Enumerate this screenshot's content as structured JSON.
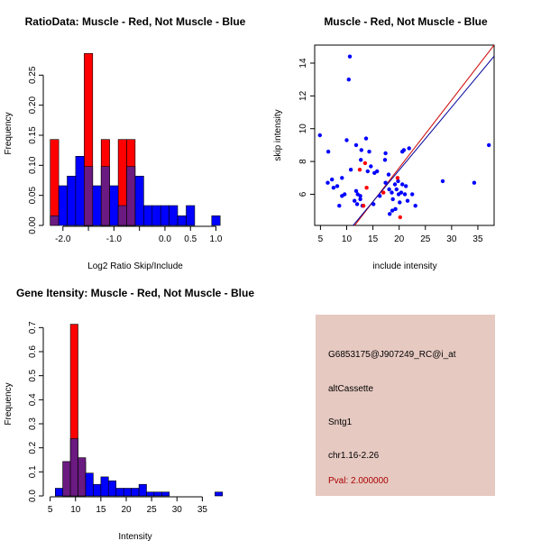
{
  "colors": {
    "red": "#ff0000",
    "blue": "#0000ff",
    "overlap": "#6a1a80",
    "info_bg": "#e6c9c1",
    "pval_text": "#aa0000",
    "line_red": "#cc0000",
    "line_blue": "#000099"
  },
  "info_panel": {
    "probe": "G6853175@J907249_RC@i_at",
    "event_type": "altCassette",
    "gene": "Sntg1",
    "location": "chr1.16-2.26",
    "pval": "Pval: 2.000000"
  },
  "chart_data": [
    {
      "id": "ratio",
      "type": "bar",
      "title": "RatioData: Muscle - Red, Not Muscle - Blue",
      "xlabel": "Log2 Ratio Skip/Include",
      "ylabel": "Frequency",
      "xlim": [
        -2.35,
        1.15
      ],
      "ylim": [
        0,
        0.3
      ],
      "xticks": [
        -2.0,
        -1.5,
        -1.0,
        -0.5,
        0.0,
        0.5,
        1.0
      ],
      "xtick_labels": [
        "-2.0",
        "",
        "-1.0",
        "",
        "0.0",
        "0.5",
        "1.0"
      ],
      "yticks": [
        0.0,
        0.05,
        0.1,
        0.15,
        0.2,
        0.25
      ],
      "ytick_labels": [
        "0.00",
        "0.05",
        "0.10",
        "0.15",
        "0.20",
        "0.25"
      ],
      "bin_width": 0.1666,
      "series": [
        {
          "name": "Muscle",
          "color": "red",
          "bins": [
            {
              "x0": -2.25,
              "value": 0.143
            },
            {
              "x0": -1.583,
              "value": 0.286
            },
            {
              "x0": -1.25,
              "value": 0.143
            },
            {
              "x0": -0.917,
              "value": 0.143
            },
            {
              "x0": -0.75,
              "value": 0.143
            }
          ]
        },
        {
          "name": "Not Muscle",
          "color": "blue",
          "bins": [
            {
              "x0": -2.25,
              "value": 0.016
            },
            {
              "x0": -2.083,
              "value": 0.066
            },
            {
              "x0": -1.917,
              "value": 0.082
            },
            {
              "x0": -1.75,
              "value": 0.115
            },
            {
              "x0": -1.583,
              "value": 0.098
            },
            {
              "x0": -1.417,
              "value": 0.066
            },
            {
              "x0": -1.25,
              "value": 0.098
            },
            {
              "x0": -1.083,
              "value": 0.066
            },
            {
              "x0": -0.917,
              "value": 0.033
            },
            {
              "x0": -0.75,
              "value": 0.098
            },
            {
              "x0": -0.583,
              "value": 0.082
            },
            {
              "x0": -0.417,
              "value": 0.033
            },
            {
              "x0": -0.25,
              "value": 0.033
            },
            {
              "x0": -0.083,
              "value": 0.033
            },
            {
              "x0": 0.083,
              "value": 0.033
            },
            {
              "x0": 0.25,
              "value": 0.016
            },
            {
              "x0": 0.417,
              "value": 0.033
            },
            {
              "x0": 0.917,
              "value": 0.016
            }
          ]
        }
      ]
    },
    {
      "id": "scatter",
      "type": "scatter",
      "title": "Muscle - Red, Not Muscle - Blue",
      "xlabel": "include intensity",
      "ylabel": "skip intensity",
      "xlim": [
        3.9,
        38.1
      ],
      "ylim": [
        4.1,
        15.1
      ],
      "xticks": [
        5,
        10,
        15,
        20,
        25,
        30,
        35
      ],
      "xtick_labels": [
        "5",
        "10",
        "15",
        "20",
        "25",
        "30",
        "35"
      ],
      "yticks": [
        6,
        8,
        10,
        12,
        14
      ],
      "ytick_labels": [
        "6",
        "8",
        "10",
        "12",
        "14"
      ],
      "lines": [
        {
          "color": "line_red",
          "slope": 0.414,
          "intercept": -0.67
        },
        {
          "color": "line_blue",
          "slope": 0.384,
          "intercept": -0.21
        }
      ],
      "series": [
        {
          "name": "Muscle",
          "color": "red",
          "points": [
            [
              12.5,
              7.5
            ],
            [
              13.5,
              7.9
            ],
            [
              13.8,
              6.4
            ],
            [
              13.2,
              5.3
            ],
            [
              17.0,
              6.1
            ],
            [
              19.7,
              7.0
            ],
            [
              20.2,
              4.6
            ]
          ]
        },
        {
          "name": "Not Muscle",
          "color": "blue",
          "points": [
            [
              10.6,
              14.4
            ],
            [
              10.4,
              13.0
            ],
            [
              4.9,
              9.6
            ],
            [
              6.5,
              8.6
            ],
            [
              10.0,
              9.3
            ],
            [
              11.8,
              9.0
            ],
            [
              12.8,
              8.7
            ],
            [
              13.7,
              9.4
            ],
            [
              14.3,
              8.6
            ],
            [
              12.7,
              8.1
            ],
            [
              10.8,
              7.5
            ],
            [
              9.1,
              7.0
            ],
            [
              7.2,
              6.9
            ],
            [
              8.2,
              6.5
            ],
            [
              6.4,
              6.7
            ],
            [
              9.1,
              5.9
            ],
            [
              8.6,
              5.3
            ],
            [
              11.5,
              5.6
            ],
            [
              11.8,
              6.2
            ],
            [
              12.1,
              6.0
            ],
            [
              12.6,
              5.7
            ],
            [
              13.0,
              5.3
            ],
            [
              12.6,
              5.9
            ],
            [
              14.0,
              7.4
            ],
            [
              14.6,
              7.7
            ],
            [
              15.3,
              7.3
            ],
            [
              15.8,
              7.4
            ],
            [
              17.4,
              8.5
            ],
            [
              17.3,
              8.1
            ],
            [
              18.0,
              7.2
            ],
            [
              17.4,
              6.7
            ],
            [
              18.1,
              6.3
            ],
            [
              18.6,
              6.1
            ],
            [
              18.8,
              5.7
            ],
            [
              19.2,
              6.6
            ],
            [
              19.5,
              6.3
            ],
            [
              19.9,
              6.0
            ],
            [
              20.1,
              5.5
            ],
            [
              19.3,
              5.1
            ],
            [
              20.4,
              6.1
            ],
            [
              20.6,
              6.6
            ],
            [
              21.1,
              6.0
            ],
            [
              21.6,
              5.6
            ],
            [
              22.5,
              6.0
            ],
            [
              23.1,
              5.3
            ],
            [
              21.3,
              6.5
            ],
            [
              20.6,
              8.6
            ],
            [
              20.9,
              8.7
            ],
            [
              21.9,
              8.8
            ],
            [
              18.2,
              4.8
            ],
            [
              28.3,
              6.8
            ],
            [
              34.3,
              6.7
            ],
            [
              37.1,
              9.0
            ],
            [
              16.3,
              5.9
            ],
            [
              15.1,
              5.4
            ],
            [
              12.0,
              5.4
            ],
            [
              18.7,
              5.0
            ],
            [
              7.5,
              6.4
            ],
            [
              9.6,
              6.0
            ],
            [
              19.8,
              6.8
            ]
          ]
        }
      ]
    },
    {
      "id": "intensity",
      "type": "bar",
      "title": "Gene Itensity: Muscle - Red, Not Muscle - Blue",
      "xlabel": "Intensity",
      "ylabel": "Frequency",
      "xlim": [
        4.0,
        39.2
      ],
      "ylim": [
        0,
        0.75
      ],
      "xticks": [
        5,
        10,
        15,
        20,
        25,
        30,
        35
      ],
      "xtick_labels": [
        "5",
        "10",
        "15",
        "20",
        "25",
        "30",
        "35"
      ],
      "yticks": [
        0.0,
        0.1,
        0.2,
        0.3,
        0.4,
        0.5,
        0.6,
        0.7
      ],
      "ytick_labels": [
        "0.0",
        "0.1",
        "0.2",
        "0.3",
        "0.4",
        "0.5",
        "0.6",
        "0.7"
      ],
      "bin_width": 1.5,
      "series": [
        {
          "name": "Muscle",
          "color": "red",
          "bins": [
            {
              "x0": 7.5,
              "value": 0.143
            },
            {
              "x0": 9.0,
              "value": 0.714
            },
            {
              "x0": 10.5,
              "value": 0.143
            }
          ]
        },
        {
          "name": "Not Muscle",
          "color": "blue",
          "bins": [
            {
              "x0": 6.0,
              "value": 0.032
            },
            {
              "x0": 7.5,
              "value": 0.143
            },
            {
              "x0": 9.0,
              "value": 0.238
            },
            {
              "x0": 10.5,
              "value": 0.159
            },
            {
              "x0": 12.0,
              "value": 0.095
            },
            {
              "x0": 13.5,
              "value": 0.048
            },
            {
              "x0": 15.0,
              "value": 0.079
            },
            {
              "x0": 16.5,
              "value": 0.063
            },
            {
              "x0": 18.0,
              "value": 0.032
            },
            {
              "x0": 19.5,
              "value": 0.032
            },
            {
              "x0": 21.0,
              "value": 0.032
            },
            {
              "x0": 22.5,
              "value": 0.048
            },
            {
              "x0": 24.0,
              "value": 0.016
            },
            {
              "x0": 25.5,
              "value": 0.016
            },
            {
              "x0": 27.0,
              "value": 0.016
            },
            {
              "x0": 37.5,
              "value": 0.016
            }
          ]
        }
      ]
    }
  ]
}
